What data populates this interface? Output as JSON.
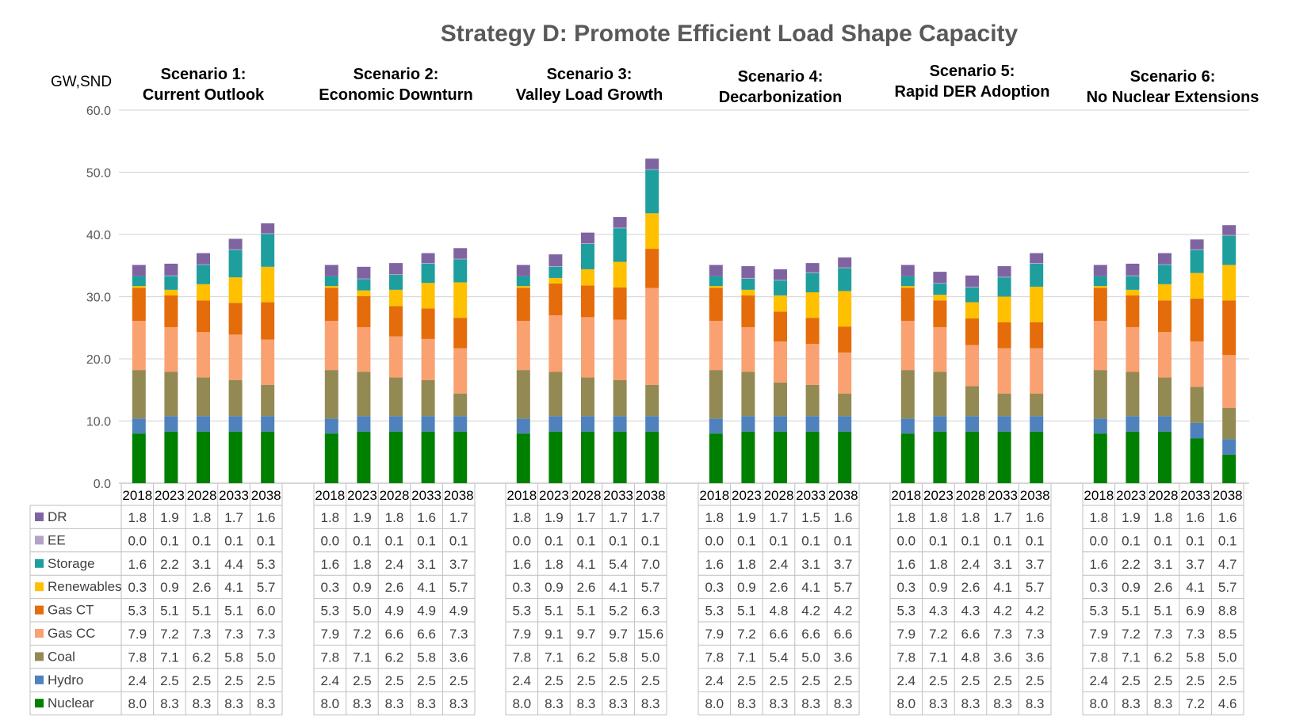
{
  "chart_data": {
    "type": "bar",
    "stacked": true,
    "title": "Strategy D: Promote Efficient Load Shape Capacity",
    "ylabel": "GW,SND",
    "ylim": [
      0,
      60
    ],
    "yticks": [
      "0.0",
      "10.0",
      "20.0",
      "30.0",
      "40.0",
      "50.0",
      "60.0"
    ],
    "years": [
      "2018",
      "2023",
      "2028",
      "2033",
      "2038"
    ],
    "scenarios": [
      {
        "line1": "Scenario 1:",
        "line2": "Current Outlook",
        "values": {
          "DR": [
            "1.8",
            "1.9",
            "1.8",
            "1.7",
            "1.6"
          ],
          "EE": [
            "0.0",
            "0.1",
            "0.1",
            "0.1",
            "0.1"
          ],
          "Storage": [
            "1.6",
            "2.2",
            "3.1",
            "4.4",
            "5.3"
          ],
          "Renewables": [
            "0.3",
            "0.9",
            "2.6",
            "4.1",
            "5.7"
          ],
          "Gas CT": [
            "5.3",
            "5.1",
            "5.1",
            "5.1",
            "6.0"
          ],
          "Gas CC": [
            "7.9",
            "7.2",
            "7.3",
            "7.3",
            "7.3"
          ],
          "Coal": [
            "7.8",
            "7.1",
            "6.2",
            "5.8",
            "5.0"
          ],
          "Hydro": [
            "2.4",
            "2.5",
            "2.5",
            "2.5",
            "2.5"
          ],
          "Nuclear": [
            "8.0",
            "8.3",
            "8.3",
            "8.3",
            "8.3"
          ]
        }
      },
      {
        "line1": "Scenario 2:",
        "line2": "Economic Downturn",
        "values": {
          "DR": [
            "1.8",
            "1.9",
            "1.8",
            "1.6",
            "1.7"
          ],
          "EE": [
            "0.0",
            "0.1",
            "0.1",
            "0.1",
            "0.1"
          ],
          "Storage": [
            "1.6",
            "1.8",
            "2.4",
            "3.1",
            "3.7"
          ],
          "Renewables": [
            "0.3",
            "0.9",
            "2.6",
            "4.1",
            "5.7"
          ],
          "Gas CT": [
            "5.3",
            "5.0",
            "4.9",
            "4.9",
            "4.9"
          ],
          "Gas CC": [
            "7.9",
            "7.2",
            "6.6",
            "6.6",
            "7.3"
          ],
          "Coal": [
            "7.8",
            "7.1",
            "6.2",
            "5.8",
            "3.6"
          ],
          "Hydro": [
            "2.4",
            "2.5",
            "2.5",
            "2.5",
            "2.5"
          ],
          "Nuclear": [
            "8.0",
            "8.3",
            "8.3",
            "8.3",
            "8.3"
          ]
        }
      },
      {
        "line1": "Scenario 3:",
        "line2": "Valley Load Growth",
        "values": {
          "DR": [
            "1.8",
            "1.9",
            "1.7",
            "1.7",
            "1.7"
          ],
          "EE": [
            "0.0",
            "0.1",
            "0.1",
            "0.1",
            "0.1"
          ],
          "Storage": [
            "1.6",
            "1.8",
            "4.1",
            "5.4",
            "7.0"
          ],
          "Renewables": [
            "0.3",
            "0.9",
            "2.6",
            "4.1",
            "5.7"
          ],
          "Gas CT": [
            "5.3",
            "5.1",
            "5.1",
            "5.2",
            "6.3"
          ],
          "Gas CC": [
            "7.9",
            "9.1",
            "9.7",
            "9.7",
            "15.6"
          ],
          "Coal": [
            "7.8",
            "7.1",
            "6.2",
            "5.8",
            "5.0"
          ],
          "Hydro": [
            "2.4",
            "2.5",
            "2.5",
            "2.5",
            "2.5"
          ],
          "Nuclear": [
            "8.0",
            "8.3",
            "8.3",
            "8.3",
            "8.3"
          ]
        }
      },
      {
        "line1": "Scenario 4:",
        "line2": "Decarbonization",
        "values": {
          "DR": [
            "1.8",
            "1.9",
            "1.7",
            "1.5",
            "1.6"
          ],
          "EE": [
            "0.0",
            "0.1",
            "0.1",
            "0.1",
            "0.1"
          ],
          "Storage": [
            "1.6",
            "1.8",
            "2.4",
            "3.1",
            "3.7"
          ],
          "Renewables": [
            "0.3",
            "0.9",
            "2.6",
            "4.1",
            "5.7"
          ],
          "Gas CT": [
            "5.3",
            "5.1",
            "4.8",
            "4.2",
            "4.2"
          ],
          "Gas CC": [
            "7.9",
            "7.2",
            "6.6",
            "6.6",
            "6.6"
          ],
          "Coal": [
            "7.8",
            "7.1",
            "5.4",
            "5.0",
            "3.6"
          ],
          "Hydro": [
            "2.4",
            "2.5",
            "2.5",
            "2.5",
            "2.5"
          ],
          "Nuclear": [
            "8.0",
            "8.3",
            "8.3",
            "8.3",
            "8.3"
          ]
        }
      },
      {
        "line1": "Scenario 5:",
        "line2": "Rapid DER Adoption",
        "values": {
          "DR": [
            "1.8",
            "1.8",
            "1.8",
            "1.7",
            "1.6"
          ],
          "EE": [
            "0.0",
            "0.1",
            "0.1",
            "0.1",
            "0.1"
          ],
          "Storage": [
            "1.6",
            "1.8",
            "2.4",
            "3.1",
            "3.7"
          ],
          "Renewables": [
            "0.3",
            "0.9",
            "2.6",
            "4.1",
            "5.7"
          ],
          "Gas CT": [
            "5.3",
            "4.3",
            "4.3",
            "4.2",
            "4.2"
          ],
          "Gas CC": [
            "7.9",
            "7.2",
            "6.6",
            "7.3",
            "7.3"
          ],
          "Coal": [
            "7.8",
            "7.1",
            "4.8",
            "3.6",
            "3.6"
          ],
          "Hydro": [
            "2.4",
            "2.5",
            "2.5",
            "2.5",
            "2.5"
          ],
          "Nuclear": [
            "8.0",
            "8.3",
            "8.3",
            "8.3",
            "8.3"
          ]
        }
      },
      {
        "line1": "Scenario 6:",
        "line2": "No Nuclear Extensions",
        "values": {
          "DR": [
            "1.8",
            "1.9",
            "1.8",
            "1.6",
            "1.6"
          ],
          "EE": [
            "0.0",
            "0.1",
            "0.1",
            "0.1",
            "0.1"
          ],
          "Storage": [
            "1.6",
            "2.2",
            "3.1",
            "3.7",
            "4.7"
          ],
          "Renewables": [
            "0.3",
            "0.9",
            "2.6",
            "4.1",
            "5.7"
          ],
          "Gas CT": [
            "5.3",
            "5.1",
            "5.1",
            "6.9",
            "8.8"
          ],
          "Gas CC": [
            "7.9",
            "7.2",
            "7.3",
            "7.3",
            "8.5"
          ],
          "Coal": [
            "7.8",
            "7.1",
            "6.2",
            "5.8",
            "5.0"
          ],
          "Hydro": [
            "2.4",
            "2.5",
            "2.5",
            "2.5",
            "2.5"
          ],
          "Nuclear": [
            "8.0",
            "8.3",
            "8.3",
            "7.2",
            "4.6"
          ]
        }
      }
    ],
    "series": [
      {
        "name": "DR",
        "color": "#8064A2"
      },
      {
        "name": "EE",
        "color": "#B3A2C7"
      },
      {
        "name": "Storage",
        "color": "#1F9E9E"
      },
      {
        "name": "Renewables",
        "color": "#FFC000"
      },
      {
        "name": "Gas CT",
        "color": "#E46C0A"
      },
      {
        "name": "Gas CC",
        "color": "#FAA171"
      },
      {
        "name": "Coal",
        "color": "#938953"
      },
      {
        "name": "Hydro",
        "color": "#4F81BD"
      },
      {
        "name": "Nuclear",
        "color": "#008000"
      }
    ],
    "stack_order": [
      "Nuclear",
      "Hydro",
      "Coal",
      "Gas CC",
      "Gas CT",
      "Renewables",
      "Storage",
      "EE",
      "DR"
    ],
    "grid": true,
    "legend": "data-table-left"
  }
}
